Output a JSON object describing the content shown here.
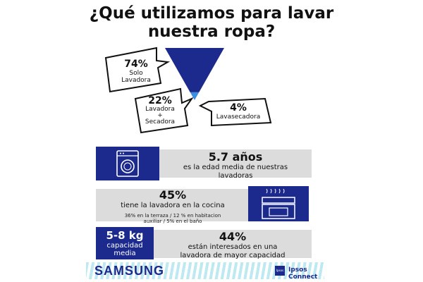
{
  "title": "¿Qué utilizamos para lavar nuestra ropa?",
  "colors": {
    "navy": "#1b2a8c",
    "funnel_main": "#1b2a8c",
    "funnel_tip": "#3c8fe0",
    "panel_gray": "#dcdcdc",
    "footer_stripe": "#bfe9f0"
  },
  "chart_data": {
    "type": "funnel",
    "categories": [
      "Solo Lavadora",
      "Lavadora + Secadora",
      "Lavasecadora"
    ],
    "values": [
      74,
      22,
      4
    ],
    "unit": "%"
  },
  "bubbles": [
    {
      "pct": "74%",
      "label": "Solo\nLavadora"
    },
    {
      "pct": "22%",
      "label": "Lavadora\n+\nSecadora"
    },
    {
      "pct": "4%",
      "label": "Lavasecadora"
    }
  ],
  "stats": {
    "age": {
      "value": "5.7 años",
      "text": "es la edad media de nuestras lavadoras",
      "icon": "washing-machine-icon"
    },
    "kitchen": {
      "value": "45%",
      "text": "tiene la lavadora en la cocina",
      "note": "36% en la terraza / 12 % en habitacion auxiliar / 5%  en el baño",
      "icon": "kitchen-stove-icon"
    },
    "capacity": {
      "box_value": "5-8 kg",
      "box_text": "capacidad media",
      "value": "44%",
      "text": "están interesados en una lavadora de mayor capacidad"
    }
  },
  "footer": {
    "brand": "SAMSUNG",
    "partner": "Ipsos Connect",
    "partner_logo_text": "Ipsos"
  }
}
